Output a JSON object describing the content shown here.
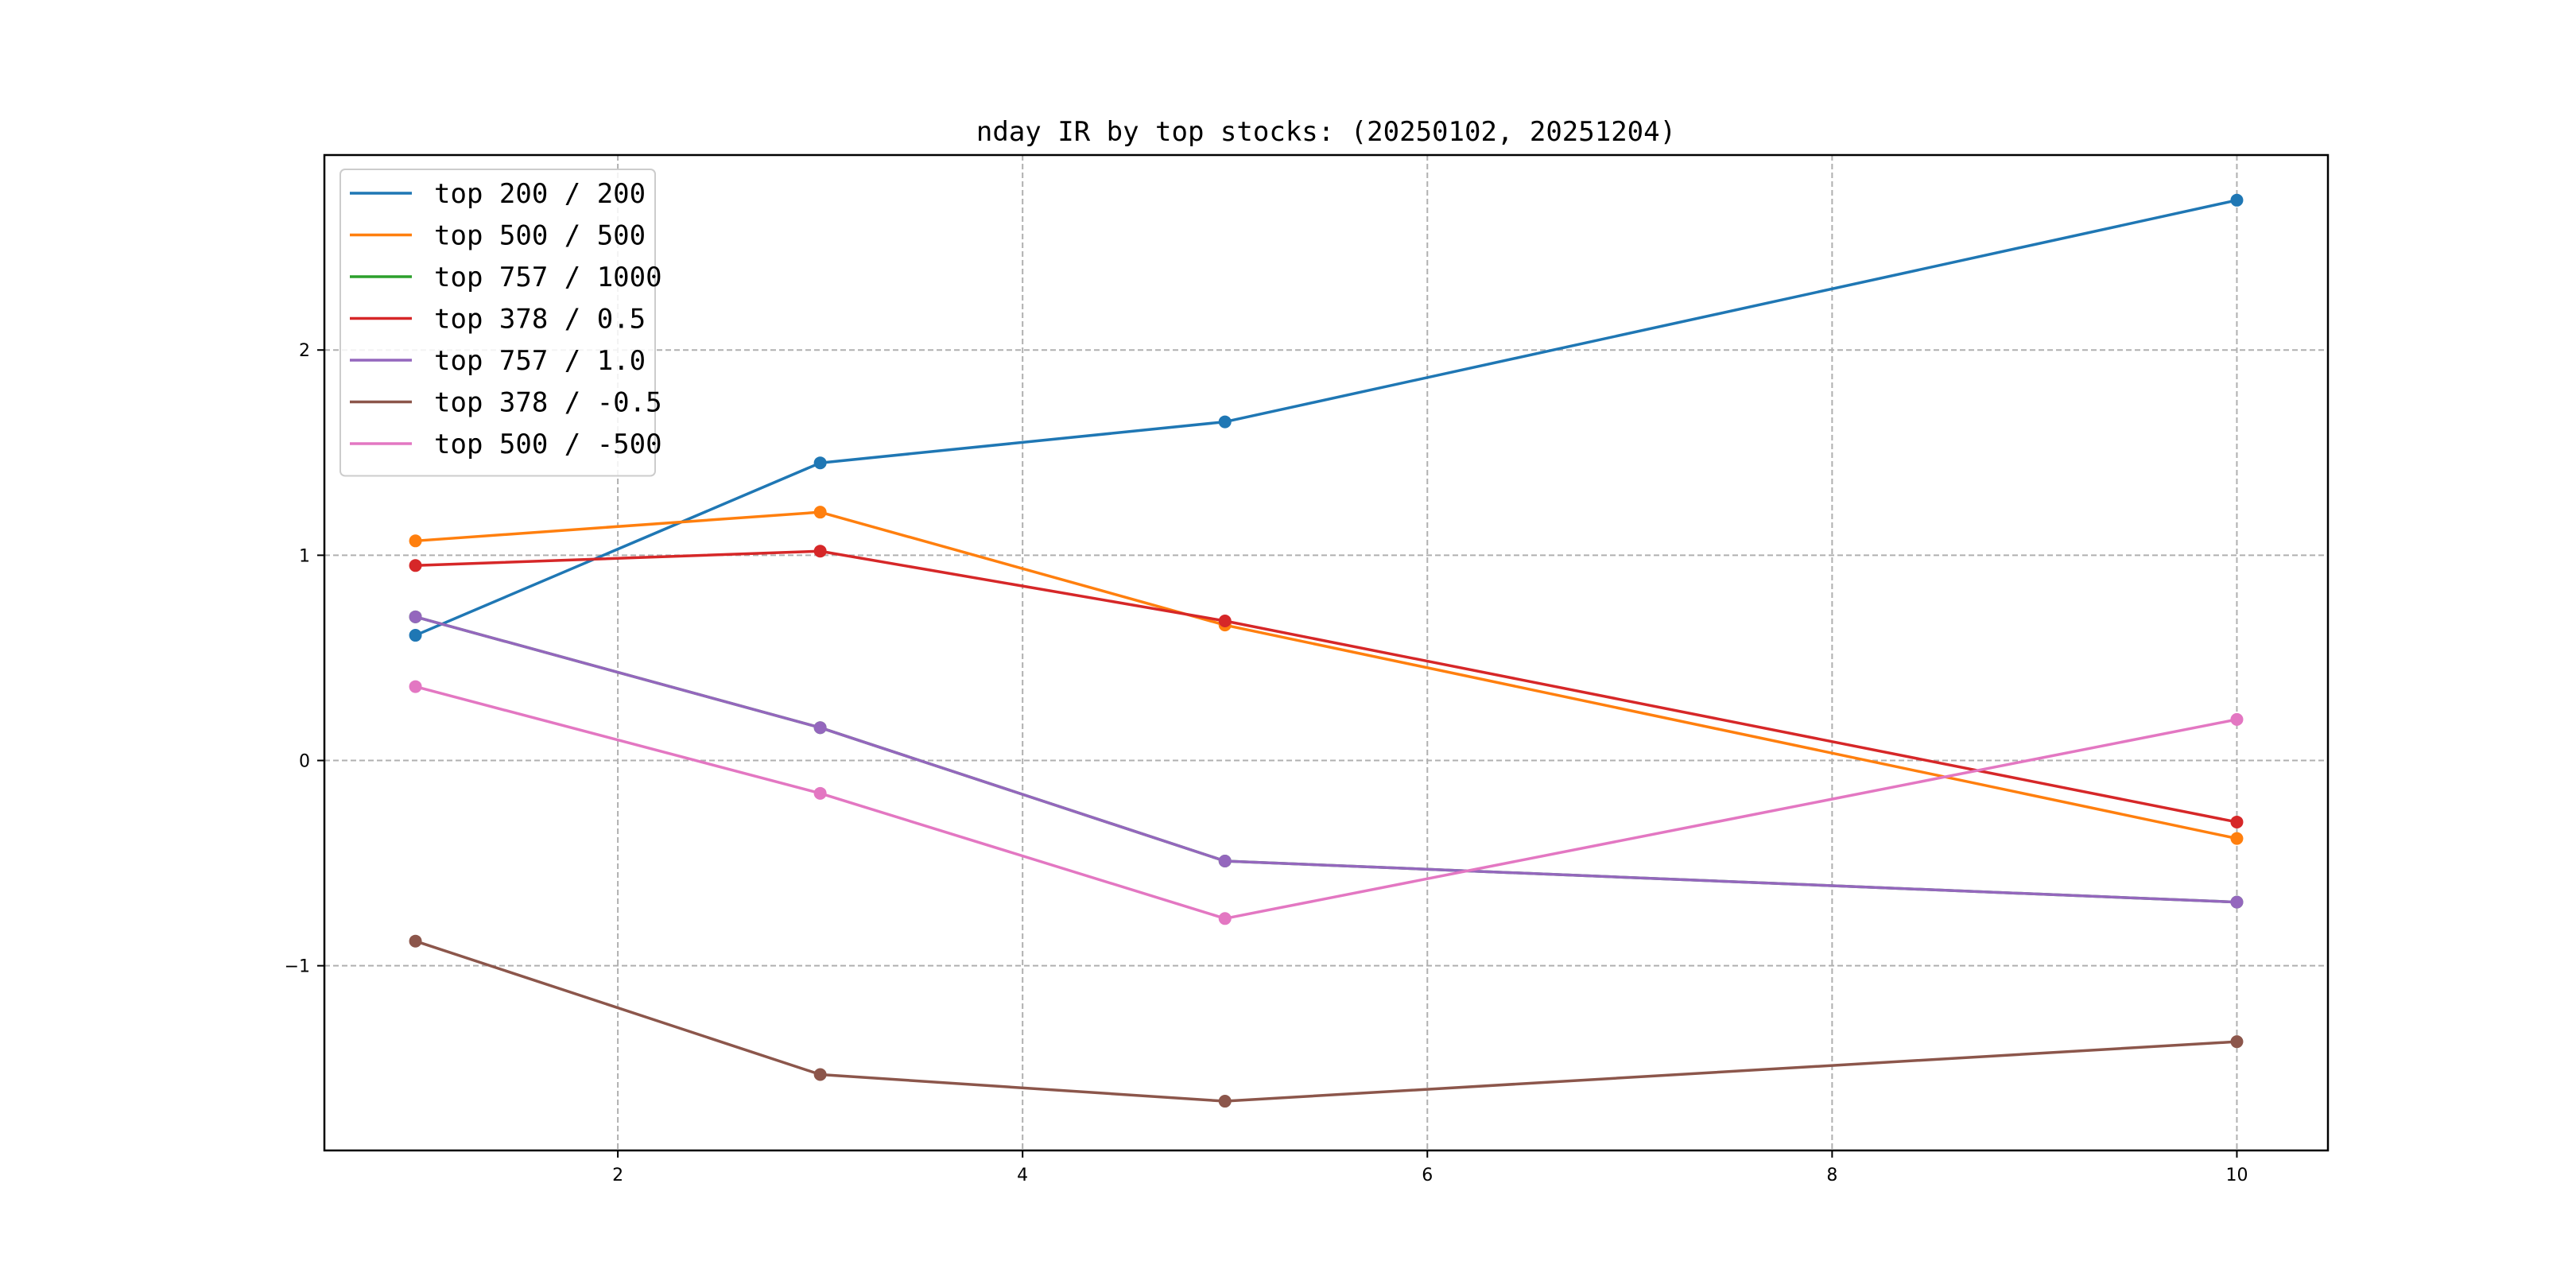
{
  "chart_data": {
    "type": "line",
    "title": "nday IR by top stocks: (20250102, 20251204)",
    "xlabel": "",
    "ylabel": "",
    "x": [
      1,
      3,
      5,
      10
    ],
    "xlim": [
      0.55,
      10.45
    ],
    "ylim": [
      -1.9,
      2.95
    ],
    "xticks": [
      2,
      4,
      6,
      8,
      10
    ],
    "yticks": [
      -1,
      0,
      1,
      2
    ],
    "xtick_labels": [
      "2",
      "4",
      "6",
      "8",
      "10"
    ],
    "ytick_labels": [
      "−1",
      "0",
      "1",
      "2"
    ],
    "grid": true,
    "legend_position": "top-left",
    "series": [
      {
        "name": "top 200 / 200",
        "color": "#1f77b4",
        "values": [
          0.61,
          1.45,
          1.65,
          2.73
        ]
      },
      {
        "name": "top 500 / 500",
        "color": "#ff7f0e",
        "values": [
          1.07,
          1.21,
          0.66,
          -0.38
        ]
      },
      {
        "name": "top 757 / 1000",
        "color": "#2ca02c",
        "values": [
          0.7,
          0.16,
          -0.49,
          -0.69
        ]
      },
      {
        "name": "top 378 / 0.5",
        "color": "#d62728",
        "values": [
          0.95,
          1.02,
          0.68,
          -0.3
        ]
      },
      {
        "name": "top 757 / 1.0",
        "color": "#9467bd",
        "values": [
          0.7,
          0.16,
          -0.49,
          -0.69
        ]
      },
      {
        "name": "top 378 / -0.5",
        "color": "#8c564b",
        "values": [
          -0.88,
          -1.53,
          -1.66,
          -1.37
        ]
      },
      {
        "name": "top 500 / -500",
        "color": "#e377c2",
        "values": [
          0.36,
          -0.16,
          -0.77,
          0.2
        ]
      }
    ]
  }
}
